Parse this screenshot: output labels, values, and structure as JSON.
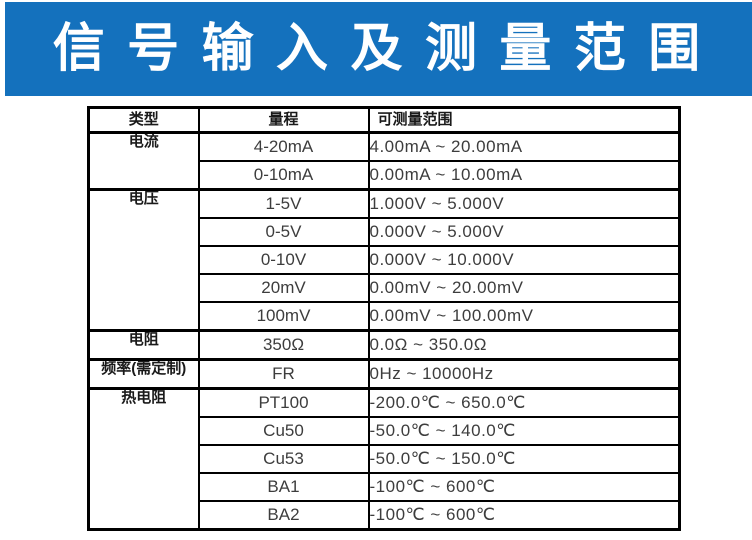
{
  "banner": {
    "title": "信 号 输 入 及 测 量 范 围",
    "bg_color": "#1471bd",
    "text_color": "#ffffff"
  },
  "table": {
    "headers": [
      "类型",
      "量程",
      "可测量范围"
    ],
    "groups": [
      {
        "type": "电流",
        "rows": [
          [
            "4-20mA",
            "4.00mA ~ 20.00mA"
          ],
          [
            "0-10mA",
            "0.00mA ~ 10.00mA"
          ]
        ]
      },
      {
        "type": "电压",
        "rows": [
          [
            "1-5V",
            "1.000V ~ 5.000V"
          ],
          [
            "0-5V",
            "0.000V ~ 5.000V"
          ],
          [
            "0-10V",
            "0.000V ~ 10.000V"
          ],
          [
            "20mV",
            "0.00mV ~ 20.00mV"
          ],
          [
            "100mV",
            "0.00mV ~ 100.00mV"
          ]
        ]
      },
      {
        "type": "电阻",
        "rows": [
          [
            "350Ω",
            "0.0Ω ~ 350.0Ω"
          ]
        ]
      },
      {
        "type": "频率(需定制)",
        "rows": [
          [
            "FR",
            "0Hz ~ 10000Hz"
          ]
        ]
      },
      {
        "type": "热电阻",
        "rows": [
          [
            "PT100",
            "-200.0℃ ~ 650.0℃"
          ],
          [
            "Cu50",
            "-50.0℃ ~ 140.0℃"
          ],
          [
            "Cu53",
            "-50.0℃ ~ 150.0℃"
          ],
          [
            "BA1",
            "-100℃ ~ 600℃"
          ],
          [
            "BA2",
            "-100℃ ~ 600℃"
          ]
        ]
      }
    ]
  }
}
